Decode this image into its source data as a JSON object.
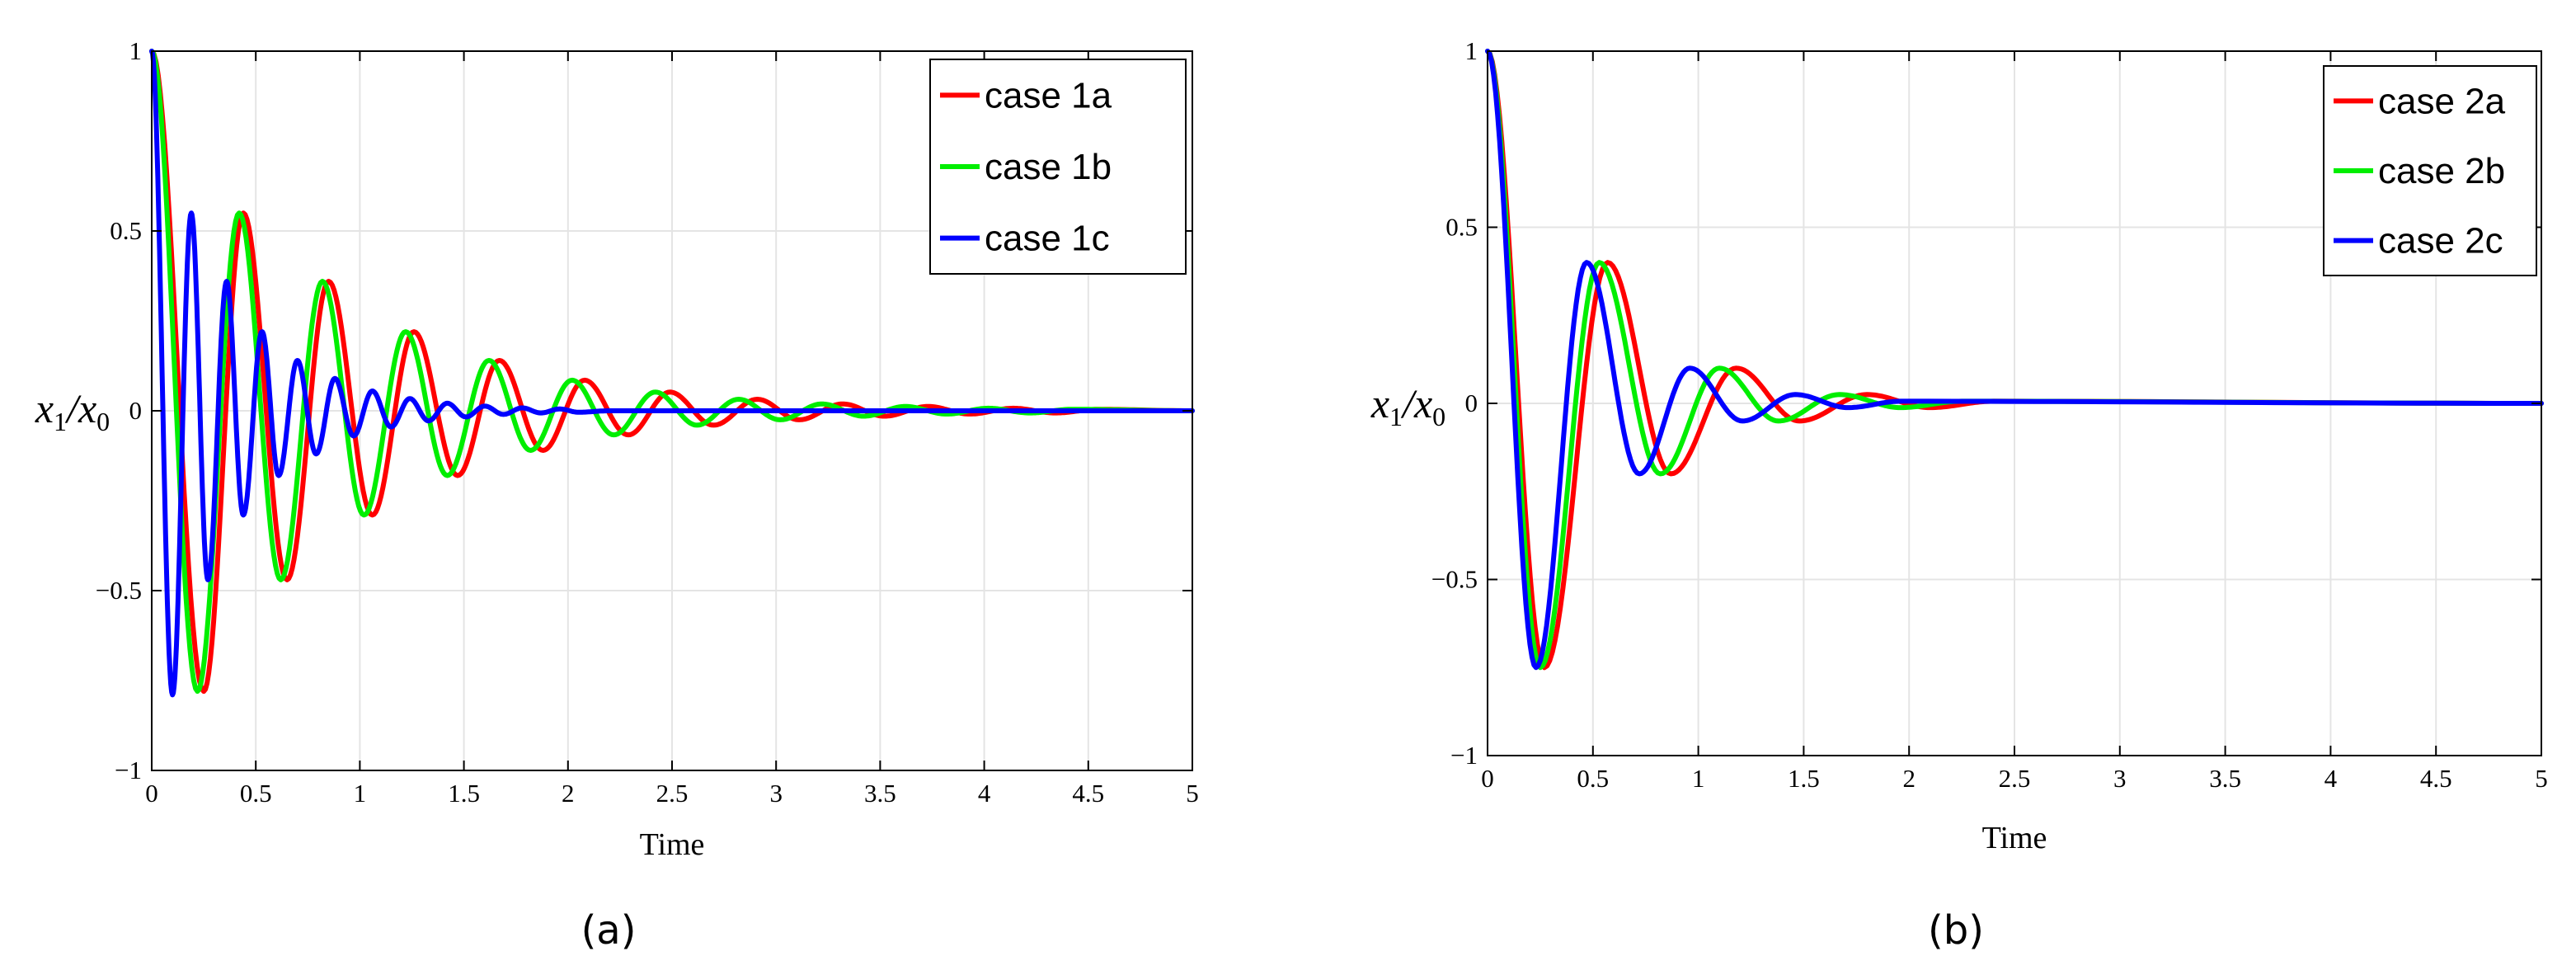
{
  "chart_data": [
    {
      "type": "line",
      "panel_label": "(a)",
      "xlabel": "Time",
      "ylabel_var": "x",
      "ylabel_sub1": "1",
      "ylabel_den": "x",
      "ylabel_sub2": "0",
      "xlim": [
        0,
        5
      ],
      "ylim": [
        -1,
        1
      ],
      "xticks": [
        "0",
        "0.5",
        "1",
        "1.5",
        "2",
        "2.5",
        "3",
        "3.5",
        "4",
        "4.5",
        "5"
      ],
      "yticks": [
        "−1",
        "−0.5",
        "0",
        "0.5",
        "1"
      ],
      "grid": true,
      "legend": "top-right",
      "series": [
        {
          "name": "case 1a",
          "color": "#ff0000",
          "x": [
            0,
            0.25,
            0.44,
            0.65,
            0.85,
            1.06,
            1.26,
            1.47,
            1.67,
            1.88,
            2.08,
            2.29,
            2.49,
            2.7,
            2.91,
            3.11,
            3.32,
            3.52,
            3.73,
            3.93,
            4.14,
            4.34,
            4.55,
            5
          ],
          "y": [
            1,
            -0.78,
            0.55,
            -0.47,
            0.36,
            -0.29,
            0.22,
            -0.18,
            0.14,
            -0.11,
            0.085,
            -0.067,
            0.052,
            -0.04,
            0.032,
            -0.025,
            0.019,
            -0.015,
            0.012,
            -0.009,
            0.007,
            -0.006,
            0.004,
            0
          ]
        },
        {
          "name": "case 1b",
          "color": "#00ee00",
          "x": [
            0,
            0.22,
            0.42,
            0.62,
            0.82,
            1.02,
            1.22,
            1.42,
            1.62,
            1.82,
            2.02,
            2.22,
            2.42,
            2.62,
            2.82,
            3.02,
            3.22,
            3.42,
            3.62,
            3.82,
            4.02,
            4.22,
            4.42,
            5
          ],
          "y": [
            1,
            -0.78,
            0.55,
            -0.47,
            0.36,
            -0.29,
            0.22,
            -0.18,
            0.14,
            -0.11,
            0.085,
            -0.067,
            0.052,
            -0.04,
            0.032,
            -0.025,
            0.019,
            -0.015,
            0.012,
            -0.009,
            0.007,
            -0.006,
            0.004,
            0
          ]
        },
        {
          "name": "case 1c",
          "color": "#0000ff",
          "x": [
            0,
            0.1,
            0.19,
            0.27,
            0.36,
            0.44,
            0.53,
            0.61,
            0.7,
            0.79,
            0.88,
            0.97,
            1.06,
            1.15,
            1.24,
            1.33,
            1.42,
            1.51,
            1.6,
            1.69,
            1.78,
            1.87,
            1.96,
            2.05,
            2.2,
            5
          ],
          "y": [
            1,
            -0.79,
            0.55,
            -0.47,
            0.36,
            -0.29,
            0.22,
            -0.18,
            0.14,
            -0.12,
            0.09,
            -0.07,
            0.055,
            -0.045,
            0.034,
            -0.028,
            0.021,
            -0.017,
            0.013,
            -0.01,
            0.008,
            -0.006,
            0.005,
            -0.004,
            0,
            0
          ]
        }
      ],
      "legend_entries": [
        "case 1a",
        "case 1b",
        "case 1c"
      ]
    },
    {
      "type": "line",
      "panel_label": "(b)",
      "xlabel": "Time",
      "ylabel_var": "x",
      "ylabel_sub1": "1",
      "ylabel_den": "x",
      "ylabel_sub2": "0",
      "xlim": [
        0,
        5
      ],
      "ylim": [
        -1,
        1
      ],
      "xticks": [
        "0",
        "0.5",
        "1",
        "1.5",
        "2",
        "2.5",
        "3",
        "3.5",
        "4",
        "4.5",
        "5"
      ],
      "yticks": [
        "−1",
        "−0.5",
        "0",
        "0.5",
        "1"
      ],
      "grid": true,
      "legend": "top-right",
      "series": [
        {
          "name": "case 2a",
          "color": "#ff0000",
          "x": [
            0,
            0.27,
            0.57,
            0.87,
            1.18,
            1.48,
            1.8,
            2.1,
            2.4,
            5
          ],
          "y": [
            1,
            -0.75,
            0.4,
            -0.2,
            0.1,
            -0.05,
            0.025,
            -0.012,
            0.006,
            0
          ]
        },
        {
          "name": "case 2b",
          "color": "#00ee00",
          "x": [
            0,
            0.25,
            0.53,
            0.82,
            1.1,
            1.38,
            1.67,
            1.96,
            2.25,
            5
          ],
          "y": [
            1,
            -0.75,
            0.4,
            -0.2,
            0.1,
            -0.05,
            0.025,
            -0.012,
            0.006,
            0
          ]
        },
        {
          "name": "case 2c",
          "color": "#0000ff",
          "x": [
            0,
            0.23,
            0.47,
            0.72,
            0.96,
            1.21,
            1.46,
            1.71,
            1.96,
            5
          ],
          "y": [
            1,
            -0.75,
            0.4,
            -0.2,
            0.1,
            -0.05,
            0.025,
            -0.012,
            0.006,
            0
          ]
        }
      ],
      "legend_entries": [
        "case 2a",
        "case 2b",
        "case 2c"
      ]
    }
  ]
}
